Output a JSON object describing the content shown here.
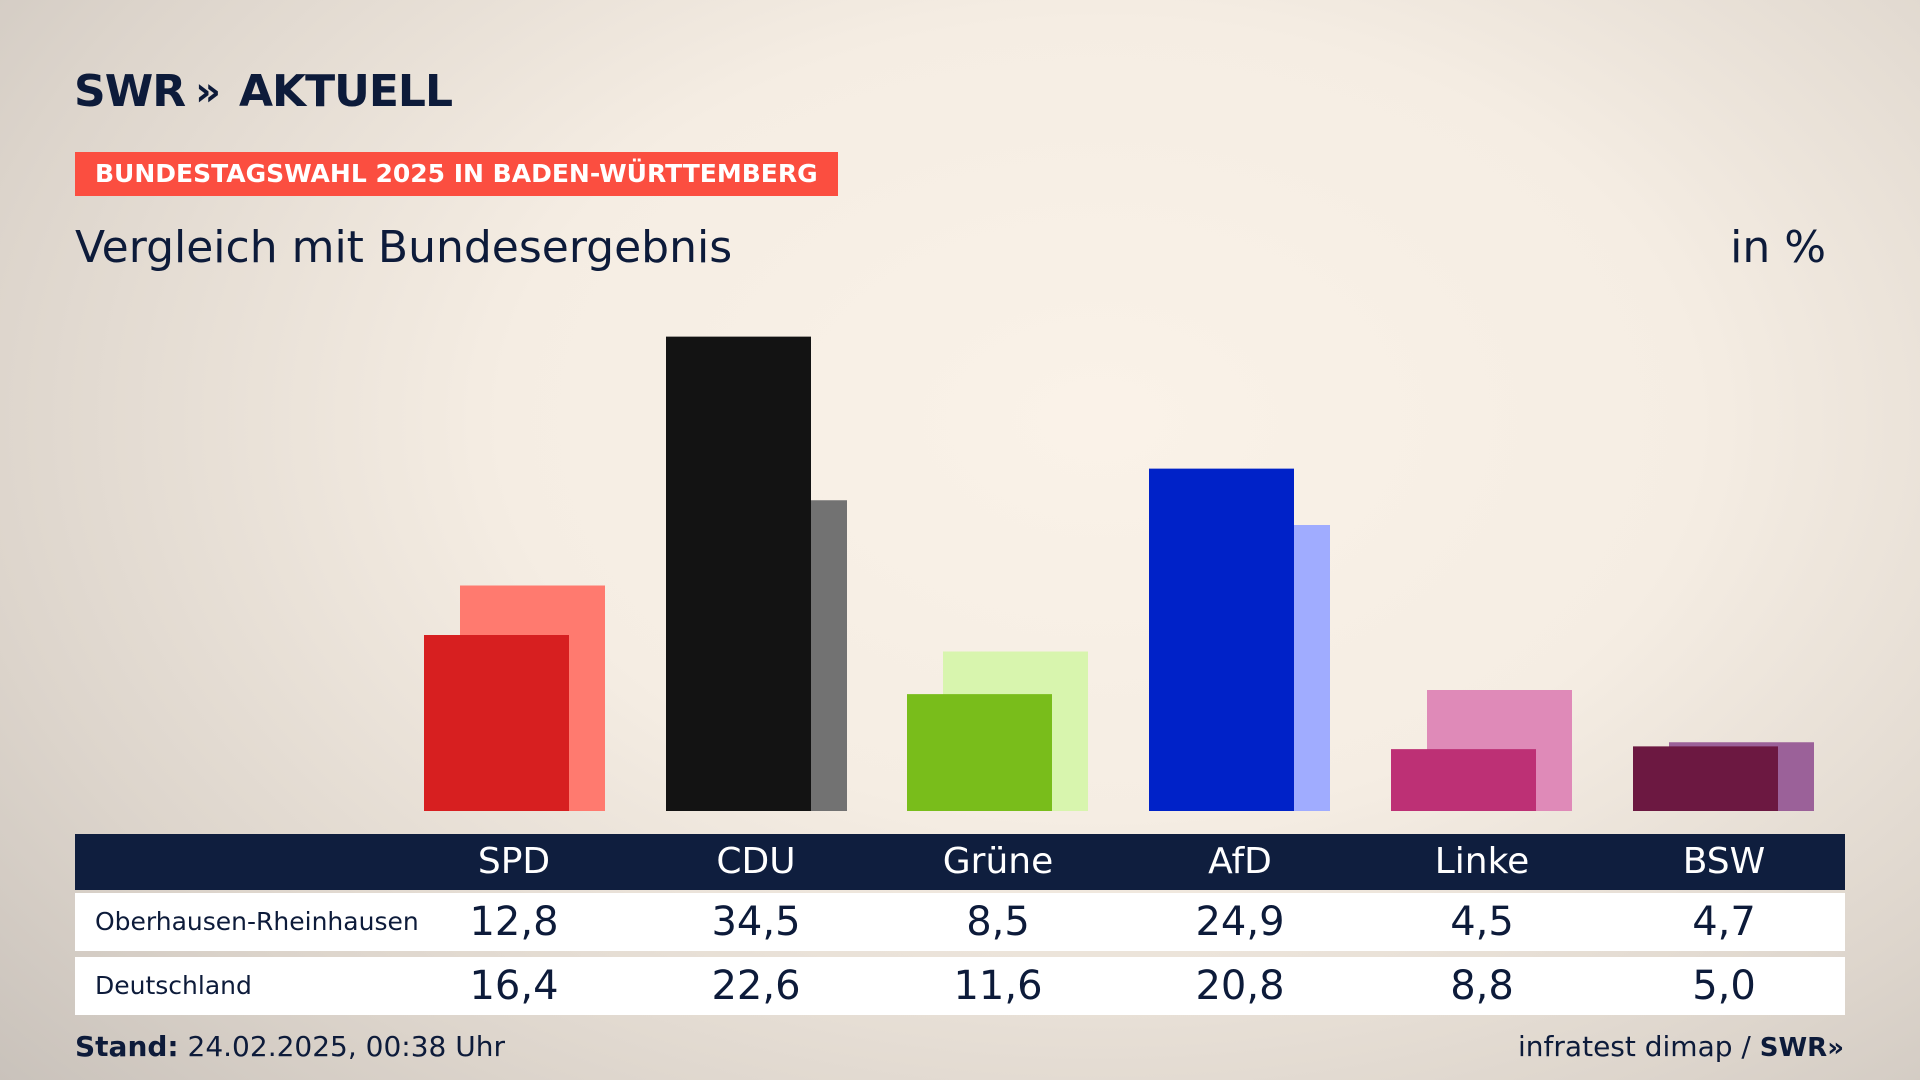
{
  "brand": {
    "logo_left": "SWR",
    "logo_chevrons": "»",
    "logo_right": "AKTUELL"
  },
  "banner": "BUNDESTAGSWAHL 2025 IN BADEN-WÜRTTEMBERG",
  "subtitle": "Vergleich mit Bundesergebnis",
  "unit": "in %",
  "chart_data": {
    "type": "bar",
    "categories": [
      "SPD",
      "CDU",
      "Grüne",
      "AfD",
      "Linke",
      "BSW"
    ],
    "series": [
      {
        "name": "Oberhausen-Rheinhausen",
        "values": [
          12.8,
          34.5,
          8.5,
          24.9,
          4.5,
          4.7
        ]
      },
      {
        "name": "Deutschland",
        "values": [
          16.4,
          22.6,
          11.6,
          20.8,
          8.8,
          5.0
        ]
      }
    ],
    "colors_primary": [
      "#d71f20",
      "#131313",
      "#79bd1b",
      "#0022c8",
      "#bd3075",
      "#6c1841"
    ],
    "colors_secondary": [
      "#ff7a6f",
      "#727272",
      "#d8f5ae",
      "#a0acff",
      "#df8ab8",
      "#9b6199"
    ],
    "ylim": [
      0,
      36
    ]
  },
  "table": {
    "rows": [
      {
        "label": "Oberhausen-Rheinhausen",
        "values": [
          "12,8",
          "34,5",
          "8,5",
          "24,9",
          "4,5",
          "4,7"
        ]
      },
      {
        "label": "Deutschland",
        "values": [
          "16,4",
          "22,6",
          "11,6",
          "20,8",
          "8,8",
          "5,0"
        ]
      }
    ]
  },
  "footer": {
    "stand_label": "Stand:",
    "stand_value": "24.02.2025, 00:38 Uhr",
    "source": "infratest dimap /",
    "source_logo": "SWR»"
  }
}
